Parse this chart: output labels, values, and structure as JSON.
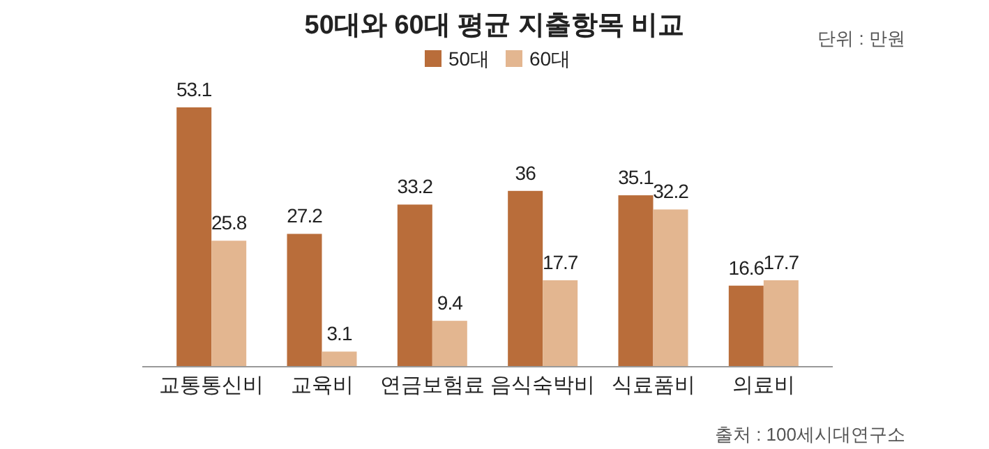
{
  "chart_data": {
    "type": "bar",
    "title": "50대와 60대 평균 지출항목 비교",
    "categories": [
      "교통통신비",
      "교육비",
      "연금보험료",
      "음식숙박비",
      "식료품비",
      "의료비"
    ],
    "series": [
      {
        "name": "50대",
        "color": "#b96d3a",
        "values": [
          53.1,
          27.2,
          33.2,
          36,
          35.1,
          16.6
        ]
      },
      {
        "name": "60대",
        "color": "#e3b690",
        "values": [
          25.8,
          3.1,
          9.4,
          17.7,
          32.2,
          17.7
        ]
      }
    ],
    "data_labels": true,
    "legend": "top",
    "annotations": [
      "단위 : 만원",
      "출처 : 100세시대연구소"
    ]
  }
}
